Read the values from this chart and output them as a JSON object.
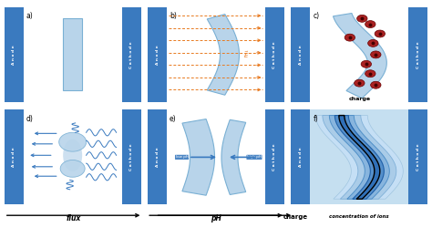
{
  "electrode_color": "#3a7abf",
  "gel_light": "#b8d4ea",
  "gel_mid": "#7ab0d4",
  "gel_dark": "#4a8bbf",
  "gel_darkest": "#2060a0",
  "orange": "#e87a20",
  "blue_arrow": "#3a7abf",
  "ion_red": "#993333",
  "ion_dark": "#660000",
  "panel_f_bg": "#c5dff0",
  "white": "#ffffff",
  "black": "#000000",
  "electrode_labels": [
    "Anode",
    "Cathode"
  ],
  "panel_labels": [
    "a)",
    "b)",
    "c)",
    "d)",
    "e)",
    "f)"
  ]
}
